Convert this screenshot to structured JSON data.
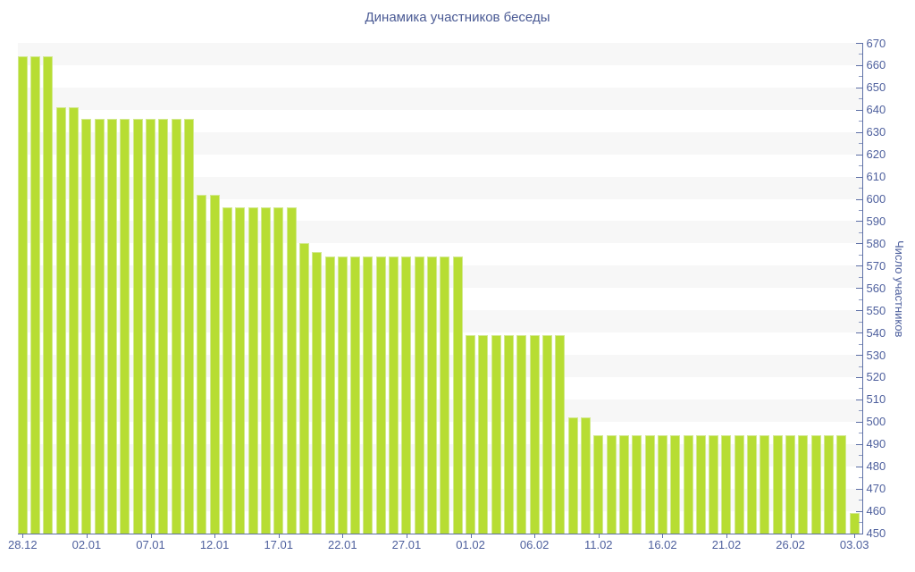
{
  "chart_data": {
    "type": "bar",
    "title": "Динамика участников беседы",
    "ylabel": "Число участников",
    "xlabel": "",
    "ylim": [
      450,
      670
    ],
    "y_tick_step": 10,
    "y_minor_tick_step": 5,
    "y_tick_labels": [
      "670",
      "660",
      "650",
      "640",
      "630",
      "620",
      "610",
      "600",
      "590",
      "580",
      "570",
      "560",
      "550",
      "540",
      "530",
      "520",
      "510",
      "500",
      "490",
      "480",
      "470",
      "460",
      "450"
    ],
    "grid": "striped-rows",
    "legend_position": "none",
    "x_ticks": [
      {
        "index": 0,
        "label": "28.12"
      },
      {
        "index": 5,
        "label": "02.01"
      },
      {
        "index": 10,
        "label": "07.01"
      },
      {
        "index": 15,
        "label": "12.01"
      },
      {
        "index": 20,
        "label": "17.01"
      },
      {
        "index": 25,
        "label": "22.01"
      },
      {
        "index": 30,
        "label": "27.01"
      },
      {
        "index": 35,
        "label": "01.02"
      },
      {
        "index": 40,
        "label": "06.02"
      },
      {
        "index": 45,
        "label": "11.02"
      },
      {
        "index": 50,
        "label": "16.02"
      },
      {
        "index": 55,
        "label": "21.02"
      },
      {
        "index": 60,
        "label": "26.02"
      },
      {
        "index": 65,
        "label": "03.03"
      }
    ],
    "values": [
      664,
      664,
      664,
      641,
      641,
      636,
      636,
      636,
      636,
      636,
      636,
      636,
      636,
      636,
      602,
      602,
      596,
      596,
      596,
      596,
      596,
      596,
      580,
      576,
      574,
      574,
      574,
      574,
      574,
      574,
      574,
      574,
      574,
      574,
      574,
      539,
      539,
      539,
      539,
      539,
      539,
      539,
      539,
      502,
      502,
      494,
      494,
      494,
      494,
      494,
      494,
      494,
      494,
      494,
      494,
      494,
      494,
      494,
      494,
      494,
      494,
      494,
      494,
      494,
      494,
      459
    ],
    "colors": {
      "bar_fill": "#b7dd33",
      "bar_border": "#d2e98f",
      "axis_line": "#5d6fa6",
      "major_tick": "#5d6fa6",
      "minor_tick": "#8d9ac1",
      "tick_label": "#4d5f9d",
      "title": "#4a5a94",
      "stripe": "#f7f7f7",
      "row_alt": "#ffffff"
    }
  }
}
